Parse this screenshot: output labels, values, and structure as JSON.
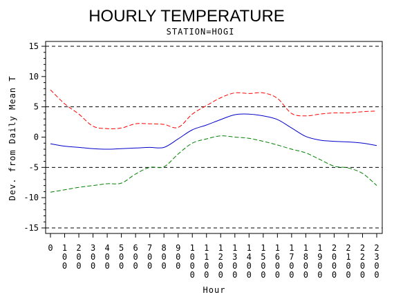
{
  "chart_data": {
    "type": "line",
    "title": "HOURLY TEMPERATURE",
    "subtitle": "STATION=HOGI",
    "xlabel": "Hour",
    "ylabel": "Dev. from Daily Mean T",
    "xlim": [
      0,
      2300
    ],
    "ylim": [
      -15,
      15
    ],
    "x_ticks": [
      0,
      100,
      200,
      300,
      400,
      500,
      600,
      700,
      800,
      900,
      1000,
      1100,
      1200,
      1300,
      1400,
      1500,
      1600,
      1700,
      1800,
      1900,
      2000,
      2100,
      2200,
      2300
    ],
    "y_ticks": [
      -15,
      -10,
      -5,
      0,
      5,
      10,
      15
    ],
    "reference_lines": [
      -15,
      -5,
      5,
      15
    ],
    "x": [
      0,
      100,
      200,
      300,
      400,
      500,
      600,
      700,
      800,
      900,
      1000,
      1100,
      1200,
      1300,
      1400,
      1500,
      1600,
      1700,
      1800,
      1900,
      2000,
      2100,
      2200,
      2300
    ],
    "series": [
      {
        "color": "#ff0000",
        "style": "dashed",
        "values": [
          7.8,
          5.5,
          3.8,
          1.8,
          1.4,
          1.5,
          2.2,
          2.2,
          2.1,
          1.6,
          3.8,
          5.2,
          6.5,
          7.3,
          7.2,
          7.3,
          6.4,
          3.9,
          3.5,
          3.8,
          4.0,
          4.0,
          4.2,
          4.3
        ]
      },
      {
        "color": "#0000cc",
        "style": "solid",
        "values": [
          -1.1,
          -1.5,
          -1.7,
          -1.9,
          -2.0,
          -1.9,
          -1.8,
          -1.7,
          -1.7,
          -0.3,
          1.2,
          2.0,
          2.9,
          3.7,
          3.8,
          3.5,
          2.9,
          1.5,
          0.1,
          -0.5,
          -0.7,
          -0.8,
          -1.0,
          -1.4
        ]
      },
      {
        "color": "#008000",
        "style": "dashed",
        "values": [
          -9.1,
          -8.7,
          -8.3,
          -8.0,
          -7.7,
          -7.6,
          -6.1,
          -5.0,
          -4.9,
          -2.8,
          -1.0,
          -0.3,
          0.2,
          0.0,
          -0.2,
          -0.7,
          -1.3,
          -2.0,
          -2.6,
          -3.7,
          -4.8,
          -5.1,
          -6.0,
          -8.0
        ]
      }
    ],
    "grid": false,
    "legend": "none"
  }
}
